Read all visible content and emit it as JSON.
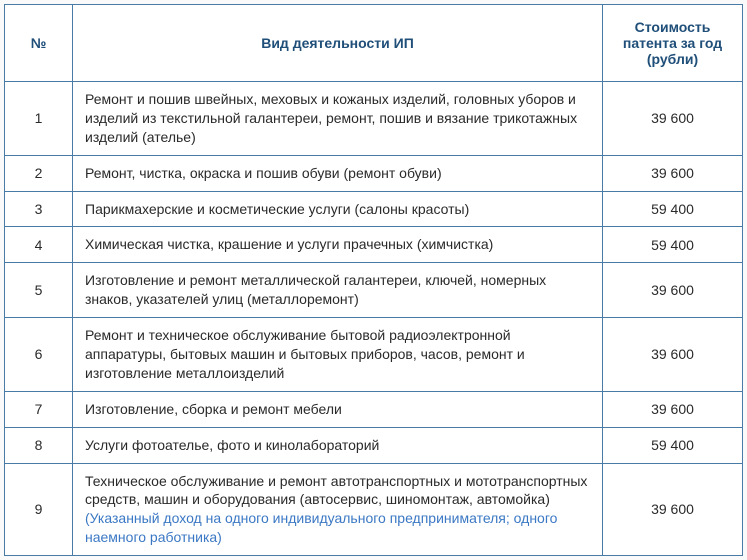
{
  "table": {
    "columns": [
      {
        "key": "num",
        "label": "№"
      },
      {
        "key": "activity",
        "label": "Вид деятельности ИП"
      },
      {
        "key": "cost",
        "label": "Стоимость патента за год (рубли)"
      }
    ],
    "rows": [
      {
        "num": "1",
        "activity": "Ремонт и пошив швейных, меховых и кожаных изделий, головных уборов и изделий из текстильной галантереи, ремонт, пошив и вязание трикотажных изделий (ателье)",
        "cost": "39 600"
      },
      {
        "num": "2",
        "activity": "Ремонт, чистка, окраска и пошив обуви (ремонт обуви)",
        "cost": "39 600"
      },
      {
        "num": "3",
        "activity": "Парикмахерские и косметические услуги (салоны красоты)",
        "cost": "59 400"
      },
      {
        "num": "4",
        "activity": "Химическая чистка, крашение и услуги прачечных (химчистка)",
        "cost": "59 400"
      },
      {
        "num": "5",
        "activity": "Изготовление и ремонт металлической галантереи, ключей, номерных знаков, указателей улиц (металлоремонт)",
        "cost": "39 600"
      },
      {
        "num": "6",
        "activity": "Ремонт и техническое обслуживание бытовой радиоэлектронной аппаратуры, бытовых машин и бытовых приборов, часов, ремонт и изготовление металлоизделий",
        "cost": "39 600"
      },
      {
        "num": "7",
        "activity": "Изготовление, сборка и ремонт мебели",
        "cost": "39 600"
      },
      {
        "num": "8",
        "activity": "Услуги фотоателье, фото и кинолабораторий",
        "cost": "59 400"
      },
      {
        "num": "9",
        "activity": "Техническое обслуживание и ремонт автотранспортных и мототранспортных средств, машин и оборудования (автосервис, шиномонтаж, автомойка)",
        "note": "(Указанный доход на одного индивидуального предпринимателя; одного наемного работника)",
        "cost": "39 600"
      }
    ],
    "border_color": "#4a7ba6",
    "header_text_color": "#1f4e79",
    "cell_text_color": "#2a2a2a",
    "note_text_color": "#3b78c4",
    "background_color": "#ffffff",
    "font_family": "Arial",
    "header_fontsize": 14,
    "cell_fontsize": 14
  }
}
